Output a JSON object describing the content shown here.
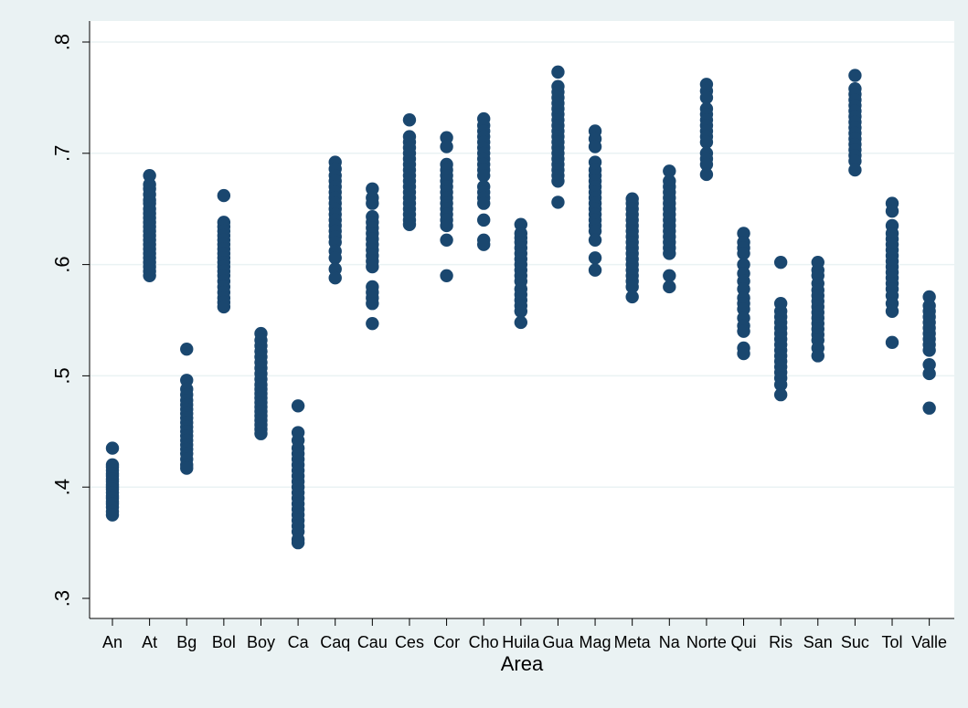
{
  "chart_data": {
    "type": "scatter",
    "title": "",
    "xlabel": "Area",
    "ylabel": "",
    "ylim": [
      0.3,
      0.8
    ],
    "yticks": [
      0.3,
      0.4,
      0.5,
      0.6,
      0.7,
      0.8
    ],
    "ytick_labels": [
      ".3",
      ".4",
      ".5",
      ".6",
      ".7",
      ".8"
    ],
    "grid": "horizontal",
    "point_color": "#1a476f",
    "background": "#eaf2f3",
    "plot_background": "#ffffff",
    "categories": [
      "An",
      "At",
      "Bg",
      "Bol",
      "Boy",
      "Ca",
      "Caq",
      "Cau",
      "Ces",
      "Cor",
      "Cho",
      "Huila",
      "Gua",
      "Mag",
      "Meta",
      "Na",
      "Norte",
      "Qui",
      "Ris",
      "San",
      "Suc",
      "Tol",
      "Valle"
    ],
    "series": [
      {
        "category": "An",
        "values": [
          0.435,
          0.42,
          0.418,
          0.415,
          0.412,
          0.41,
          0.407,
          0.405,
          0.402,
          0.4,
          0.398,
          0.395,
          0.392,
          0.39,
          0.387,
          0.385,
          0.382,
          0.378,
          0.375
        ]
      },
      {
        "category": "At",
        "values": [
          0.68,
          0.672,
          0.668,
          0.663,
          0.658,
          0.655,
          0.65,
          0.646,
          0.642,
          0.638,
          0.634,
          0.63,
          0.626,
          0.622,
          0.618,
          0.614,
          0.61,
          0.606,
          0.602,
          0.598,
          0.594,
          0.59
        ]
      },
      {
        "category": "Bg",
        "values": [
          0.524,
          0.496,
          0.488,
          0.483,
          0.478,
          0.474,
          0.47,
          0.466,
          0.462,
          0.458,
          0.454,
          0.45,
          0.446,
          0.442,
          0.438,
          0.434,
          0.43,
          0.425,
          0.42,
          0.417
        ]
      },
      {
        "category": "Bol",
        "values": [
          0.662,
          0.638,
          0.634,
          0.63,
          0.626,
          0.622,
          0.618,
          0.614,
          0.61,
          0.606,
          0.602,
          0.598,
          0.594,
          0.59,
          0.585,
          0.58,
          0.575,
          0.57,
          0.566,
          0.562
        ]
      },
      {
        "category": "Boy",
        "values": [
          0.538,
          0.532,
          0.527,
          0.522,
          0.517,
          0.512,
          0.507,
          0.502,
          0.497,
          0.492,
          0.488,
          0.484,
          0.48,
          0.476,
          0.472,
          0.468,
          0.464,
          0.46,
          0.456,
          0.452,
          0.448
        ]
      },
      {
        "category": "Ca",
        "values": [
          0.473,
          0.449,
          0.442,
          0.435,
          0.43,
          0.425,
          0.42,
          0.415,
          0.41,
          0.405,
          0.4,
          0.395,
          0.39,
          0.385,
          0.38,
          0.375,
          0.37,
          0.365,
          0.36,
          0.353,
          0.35
        ]
      },
      {
        "category": "Caq",
        "values": [
          0.692,
          0.686,
          0.68,
          0.675,
          0.67,
          0.665,
          0.66,
          0.655,
          0.65,
          0.645,
          0.64,
          0.635,
          0.63,
          0.625,
          0.62,
          0.612,
          0.606,
          0.596,
          0.588
        ]
      },
      {
        "category": "Cau",
        "values": [
          0.668,
          0.66,
          0.655,
          0.643,
          0.638,
          0.633,
          0.628,
          0.623,
          0.618,
          0.613,
          0.608,
          0.603,
          0.598,
          0.58,
          0.575,
          0.57,
          0.565,
          0.547
        ]
      },
      {
        "category": "Ces",
        "values": [
          0.73,
          0.715,
          0.71,
          0.705,
          0.7,
          0.695,
          0.69,
          0.685,
          0.68,
          0.675,
          0.67,
          0.665,
          0.66,
          0.655,
          0.65,
          0.645,
          0.64,
          0.636
        ]
      },
      {
        "category": "Cor",
        "values": [
          0.714,
          0.706,
          0.69,
          0.685,
          0.68,
          0.675,
          0.67,
          0.665,
          0.66,
          0.655,
          0.65,
          0.645,
          0.64,
          0.635,
          0.622,
          0.59
        ]
      },
      {
        "category": "Cho",
        "values": [
          0.731,
          0.725,
          0.72,
          0.715,
          0.71,
          0.705,
          0.7,
          0.695,
          0.69,
          0.685,
          0.68,
          0.67,
          0.665,
          0.66,
          0.655,
          0.64,
          0.622,
          0.618
        ]
      },
      {
        "category": "Huila",
        "values": [
          0.636,
          0.628,
          0.624,
          0.62,
          0.615,
          0.61,
          0.605,
          0.6,
          0.595,
          0.59,
          0.585,
          0.578,
          0.573,
          0.568,
          0.563,
          0.558,
          0.548
        ]
      },
      {
        "category": "Gua",
        "values": [
          0.773,
          0.76,
          0.755,
          0.75,
          0.745,
          0.74,
          0.735,
          0.73,
          0.725,
          0.72,
          0.715,
          0.71,
          0.705,
          0.7,
          0.695,
          0.69,
          0.685,
          0.68,
          0.675,
          0.656
        ]
      },
      {
        "category": "Mag",
        "values": [
          0.72,
          0.713,
          0.706,
          0.692,
          0.685,
          0.68,
          0.675,
          0.67,
          0.665,
          0.66,
          0.655,
          0.65,
          0.645,
          0.64,
          0.635,
          0.63,
          0.622,
          0.606,
          0.595
        ]
      },
      {
        "category": "Meta",
        "values": [
          0.659,
          0.655,
          0.65,
          0.645,
          0.64,
          0.635,
          0.63,
          0.625,
          0.62,
          0.615,
          0.61,
          0.605,
          0.6,
          0.595,
          0.59,
          0.585,
          0.58,
          0.571
        ]
      },
      {
        "category": "Na",
        "values": [
          0.684,
          0.675,
          0.67,
          0.665,
          0.66,
          0.655,
          0.65,
          0.645,
          0.64,
          0.635,
          0.63,
          0.625,
          0.62,
          0.615,
          0.61,
          0.59,
          0.58
        ]
      },
      {
        "category": "Norte",
        "values": [
          0.762,
          0.756,
          0.75,
          0.74,
          0.735,
          0.73,
          0.725,
          0.72,
          0.715,
          0.71,
          0.7,
          0.695,
          0.69,
          0.681
        ]
      },
      {
        "category": "Qui",
        "values": [
          0.628,
          0.62,
          0.615,
          0.61,
          0.6,
          0.592,
          0.585,
          0.578,
          0.57,
          0.565,
          0.56,
          0.552,
          0.545,
          0.54,
          0.525,
          0.52
        ]
      },
      {
        "category": "Ris",
        "values": [
          0.602,
          0.565,
          0.558,
          0.553,
          0.548,
          0.543,
          0.538,
          0.533,
          0.528,
          0.523,
          0.518,
          0.513,
          0.508,
          0.503,
          0.498,
          0.492,
          0.483
        ]
      },
      {
        "category": "San",
        "values": [
          0.602,
          0.595,
          0.59,
          0.583,
          0.577,
          0.572,
          0.567,
          0.562,
          0.557,
          0.552,
          0.547,
          0.542,
          0.537,
          0.532,
          0.525,
          0.518
        ]
      },
      {
        "category": "Suc",
        "values": [
          0.77,
          0.758,
          0.753,
          0.748,
          0.743,
          0.738,
          0.733,
          0.728,
          0.723,
          0.718,
          0.713,
          0.708,
          0.703,
          0.698,
          0.693,
          0.685
        ]
      },
      {
        "category": "Tol",
        "values": [
          0.655,
          0.648,
          0.635,
          0.628,
          0.623,
          0.618,
          0.613,
          0.608,
          0.603,
          0.598,
          0.593,
          0.588,
          0.583,
          0.578,
          0.572,
          0.565,
          0.558,
          0.53
        ]
      },
      {
        "category": "Valle",
        "values": [
          0.571,
          0.563,
          0.558,
          0.553,
          0.548,
          0.543,
          0.538,
          0.533,
          0.528,
          0.523,
          0.51,
          0.502,
          0.471
        ]
      }
    ]
  }
}
